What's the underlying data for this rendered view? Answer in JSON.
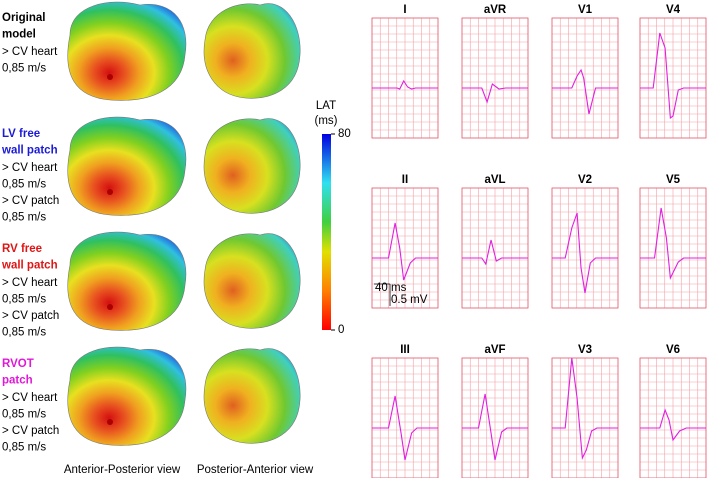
{
  "rows": [
    {
      "title": [
        "Original",
        "model"
      ],
      "color": "#000000",
      "lines": [
        "> CV heart",
        "0,85 m/s"
      ]
    },
    {
      "title": [
        "LV free",
        "wall patch"
      ],
      "color": "#1a1ad8",
      "lines": [
        "> CV heart",
        "0,85 m/s",
        "> CV patch",
        "0,85 m/s"
      ]
    },
    {
      "title": [
        "RV free",
        "wall patch"
      ],
      "color": "#e01515",
      "lines": [
        "> CV heart",
        "0,85 m/s",
        "> CV patch",
        "0,85 m/s"
      ]
    },
    {
      "title": [
        "RVOT",
        "patch"
      ],
      "color": "#e018d8",
      "lines": [
        "> CV heart",
        "0,85 m/s",
        "> CV patch",
        "0,85 m/s"
      ]
    }
  ],
  "view_labels": [
    "Anterior-Posterior view",
    "Posterior-Anterior view"
  ],
  "colorbar": {
    "label": [
      "LAT",
      "(ms)"
    ],
    "lim": [
      0,
      80
    ],
    "ticks": [
      0,
      80
    ]
  },
  "ecg": {
    "leads": [
      [
        "I",
        "aVR",
        "V1",
        "V4"
      ],
      [
        "II",
        "aVL",
        "V2",
        "V5"
      ],
      [
        "III",
        "aVF",
        "V3",
        "V6"
      ]
    ],
    "scale": [
      "40 ms",
      "0.5 mV"
    ]
  }
}
